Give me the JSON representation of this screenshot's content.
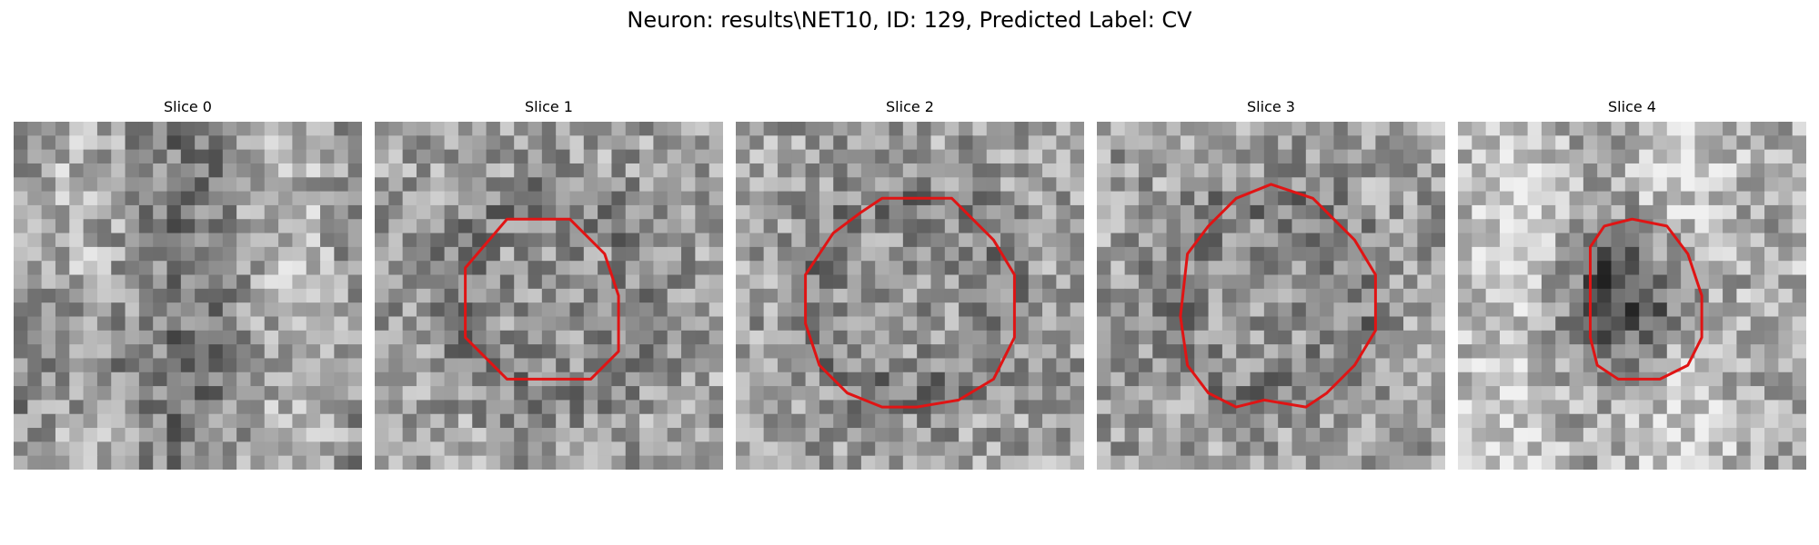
{
  "figure": {
    "title": "Neuron: results\\NET10, ID: 129, Predicted Label: CV",
    "contour_color": "#e01414",
    "panels": [
      {
        "label": "Slice 0",
        "seed": 11,
        "contour": false
      },
      {
        "label": "Slice 1",
        "seed": 23,
        "contour": true
      },
      {
        "label": "Slice 2",
        "seed": 37,
        "contour": true
      },
      {
        "label": "Slice 3",
        "seed": 51,
        "contour": true
      },
      {
        "label": "Slice 4",
        "seed": 67,
        "contour": true
      }
    ]
  }
}
